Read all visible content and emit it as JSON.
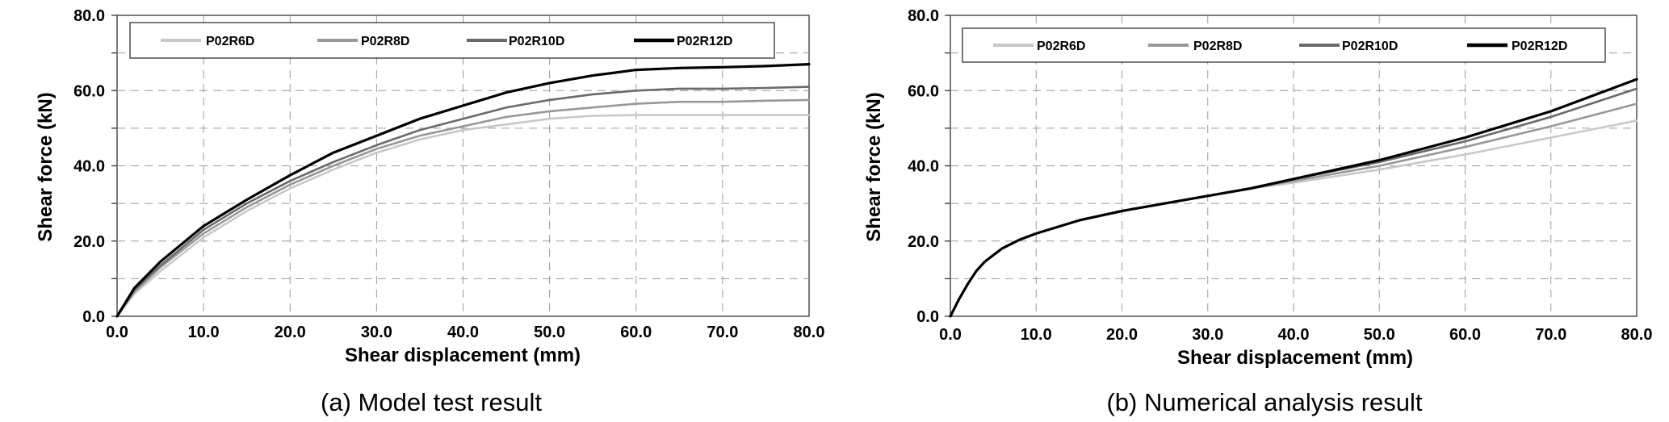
{
  "chart_data": [
    {
      "type": "line",
      "caption": "(a) Model test result",
      "xlabel": "Shear displacement (mm)",
      "ylabel": "Shear force (kN)",
      "xlim": [
        0,
        80
      ],
      "ylim": [
        0,
        80
      ],
      "x_ticks": [
        "0.0",
        "10.0",
        "20.0",
        "30.0",
        "40.0",
        "50.0",
        "60.0",
        "70.0",
        "80.0"
      ],
      "y_ticks": [
        "0.0",
        "20.0",
        "40.0",
        "60.0",
        "80.0"
      ],
      "grid": true,
      "legend_position": "top",
      "series": [
        {
          "name": "P02R6D",
          "color": "#c8c8c8",
          "x": [
            0,
            2,
            5,
            10,
            15,
            20,
            25,
            30,
            35,
            40,
            45,
            50,
            55,
            60,
            65,
            70,
            75,
            80
          ],
          "y": [
            0,
            6,
            12,
            21,
            28,
            34,
            39,
            43.5,
            47,
            49.5,
            51,
            52.5,
            53.3,
            53.5,
            53.5,
            53.5,
            53.5,
            53.5
          ]
        },
        {
          "name": "P02R8D",
          "color": "#989898",
          "x": [
            0,
            2,
            5,
            10,
            15,
            20,
            25,
            30,
            35,
            40,
            45,
            50,
            55,
            60,
            65,
            70,
            75,
            80
          ],
          "y": [
            0,
            6.5,
            13,
            22,
            29,
            35,
            40,
            44.5,
            48,
            50.5,
            53,
            54.5,
            55.5,
            56.5,
            57,
            57,
            57.3,
            57.5
          ]
        },
        {
          "name": "P02R10D",
          "color": "#6a6a6a",
          "x": [
            0,
            2,
            5,
            10,
            15,
            20,
            25,
            30,
            35,
            40,
            45,
            50,
            55,
            60,
            65,
            70,
            75,
            80
          ],
          "y": [
            0,
            7,
            13.5,
            23,
            30,
            36,
            41,
            45.5,
            49.5,
            52.5,
            55.5,
            57.5,
            59,
            60,
            60.5,
            60.5,
            60.7,
            61
          ]
        },
        {
          "name": "P02R12D",
          "color": "#000000",
          "x": [
            0,
            2,
            5,
            10,
            15,
            20,
            25,
            30,
            35,
            40,
            45,
            50,
            55,
            60,
            65,
            70,
            75,
            80
          ],
          "y": [
            0,
            7.5,
            14.5,
            24,
            31,
            37.5,
            43.5,
            48,
            52.5,
            56,
            59.5,
            62,
            64,
            65.5,
            66,
            66.2,
            66.5,
            67
          ]
        }
      ]
    },
    {
      "type": "line",
      "caption": "(b) Numerical analysis result",
      "xlabel": "Shear displacement (mm)",
      "ylabel": "Shear force (kN)",
      "xlim": [
        0,
        80
      ],
      "ylim": [
        0,
        80
      ],
      "x_ticks": [
        "0.0",
        "10.0",
        "20.0",
        "30.0",
        "40.0",
        "50.0",
        "60.0",
        "70.0",
        "80.0"
      ],
      "y_ticks": [
        "0.0",
        "20.0",
        "40.0",
        "60.0",
        "80.0"
      ],
      "grid": true,
      "legend_position": "top",
      "series": [
        {
          "name": "P02R6D",
          "color": "#c8c8c8",
          "x": [
            0,
            1,
            2,
            3,
            4,
            6,
            8,
            10,
            15,
            20,
            25,
            30,
            35,
            40,
            50,
            60,
            70,
            80
          ],
          "y": [
            0,
            4.5,
            8.5,
            12,
            14.5,
            18,
            20.3,
            22,
            25.5,
            28,
            30,
            32,
            34,
            35.5,
            39,
            43,
            47.5,
            52
          ]
        },
        {
          "name": "P02R8D",
          "color": "#989898",
          "x": [
            0,
            1,
            2,
            3,
            4,
            6,
            8,
            10,
            15,
            20,
            25,
            30,
            35,
            40,
            50,
            60,
            70,
            80
          ],
          "y": [
            0,
            4.5,
            8.5,
            12,
            14.5,
            18,
            20.3,
            22,
            25.5,
            28,
            30,
            32,
            34,
            36,
            40,
            45,
            50.5,
            56.5
          ]
        },
        {
          "name": "P02R10D",
          "color": "#6a6a6a",
          "x": [
            0,
            1,
            2,
            3,
            4,
            6,
            8,
            10,
            15,
            20,
            25,
            30,
            35,
            40,
            50,
            60,
            70,
            80
          ],
          "y": [
            0,
            4.5,
            8.5,
            12,
            14.5,
            18,
            20.3,
            22,
            25.5,
            28,
            30,
            32,
            34,
            36.5,
            41,
            46.5,
            53,
            60.5
          ]
        },
        {
          "name": "P02R12D",
          "color": "#000000",
          "x": [
            0,
            1,
            2,
            3,
            4,
            6,
            8,
            10,
            15,
            20,
            25,
            30,
            35,
            40,
            50,
            60,
            70,
            80
          ],
          "y": [
            0,
            4.5,
            8.5,
            12,
            14.5,
            18,
            20.3,
            22,
            25.5,
            28,
            30,
            32,
            34,
            36.5,
            41.5,
            47.5,
            54.5,
            63
          ]
        }
      ]
    }
  ]
}
